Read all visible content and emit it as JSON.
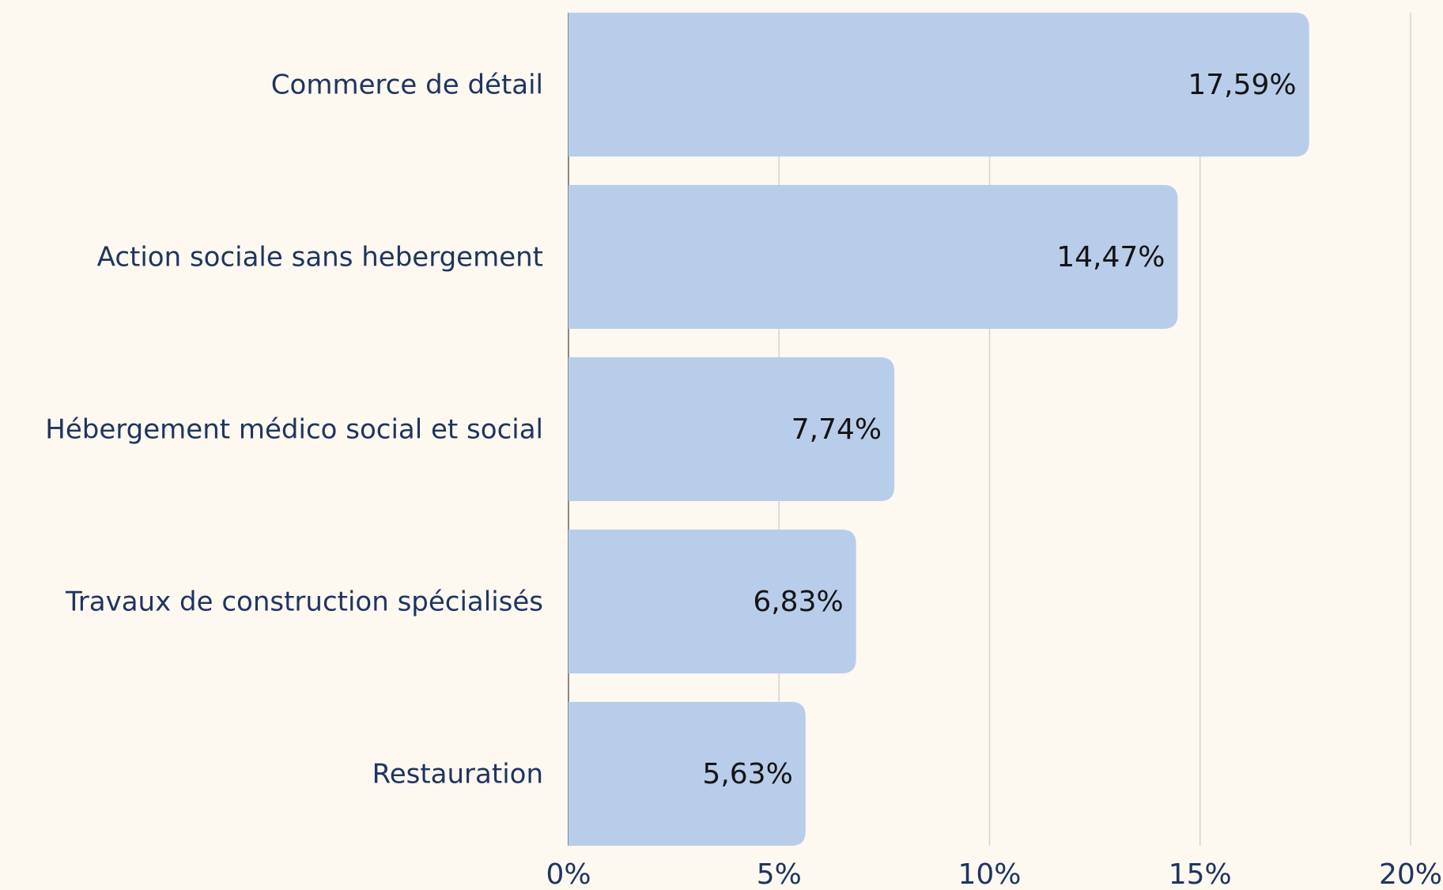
{
  "chart_data": {
    "type": "barh",
    "categories": [
      "Commerce de détail",
      "Action sociale sans hebergement",
      "Hébergement médico social et social",
      "Travaux de construction spécialisés",
      "Restauration"
    ],
    "values": [
      17.59,
      14.47,
      7.74,
      6.83,
      5.63
    ],
    "value_labels": [
      "17,59%",
      "14,47%",
      "7,74%",
      "6,83%",
      "5,63%"
    ],
    "color": "#b8cdea",
    "xlim": [
      0,
      20
    ],
    "xticks": [
      {
        "value": 0,
        "label": "0%"
      },
      {
        "value": 5,
        "label": "5%"
      },
      {
        "value": 10,
        "label": "10%"
      },
      {
        "value": 15,
        "label": "15%"
      },
      {
        "value": 20,
        "label": "20%"
      }
    ],
    "grid": true
  }
}
